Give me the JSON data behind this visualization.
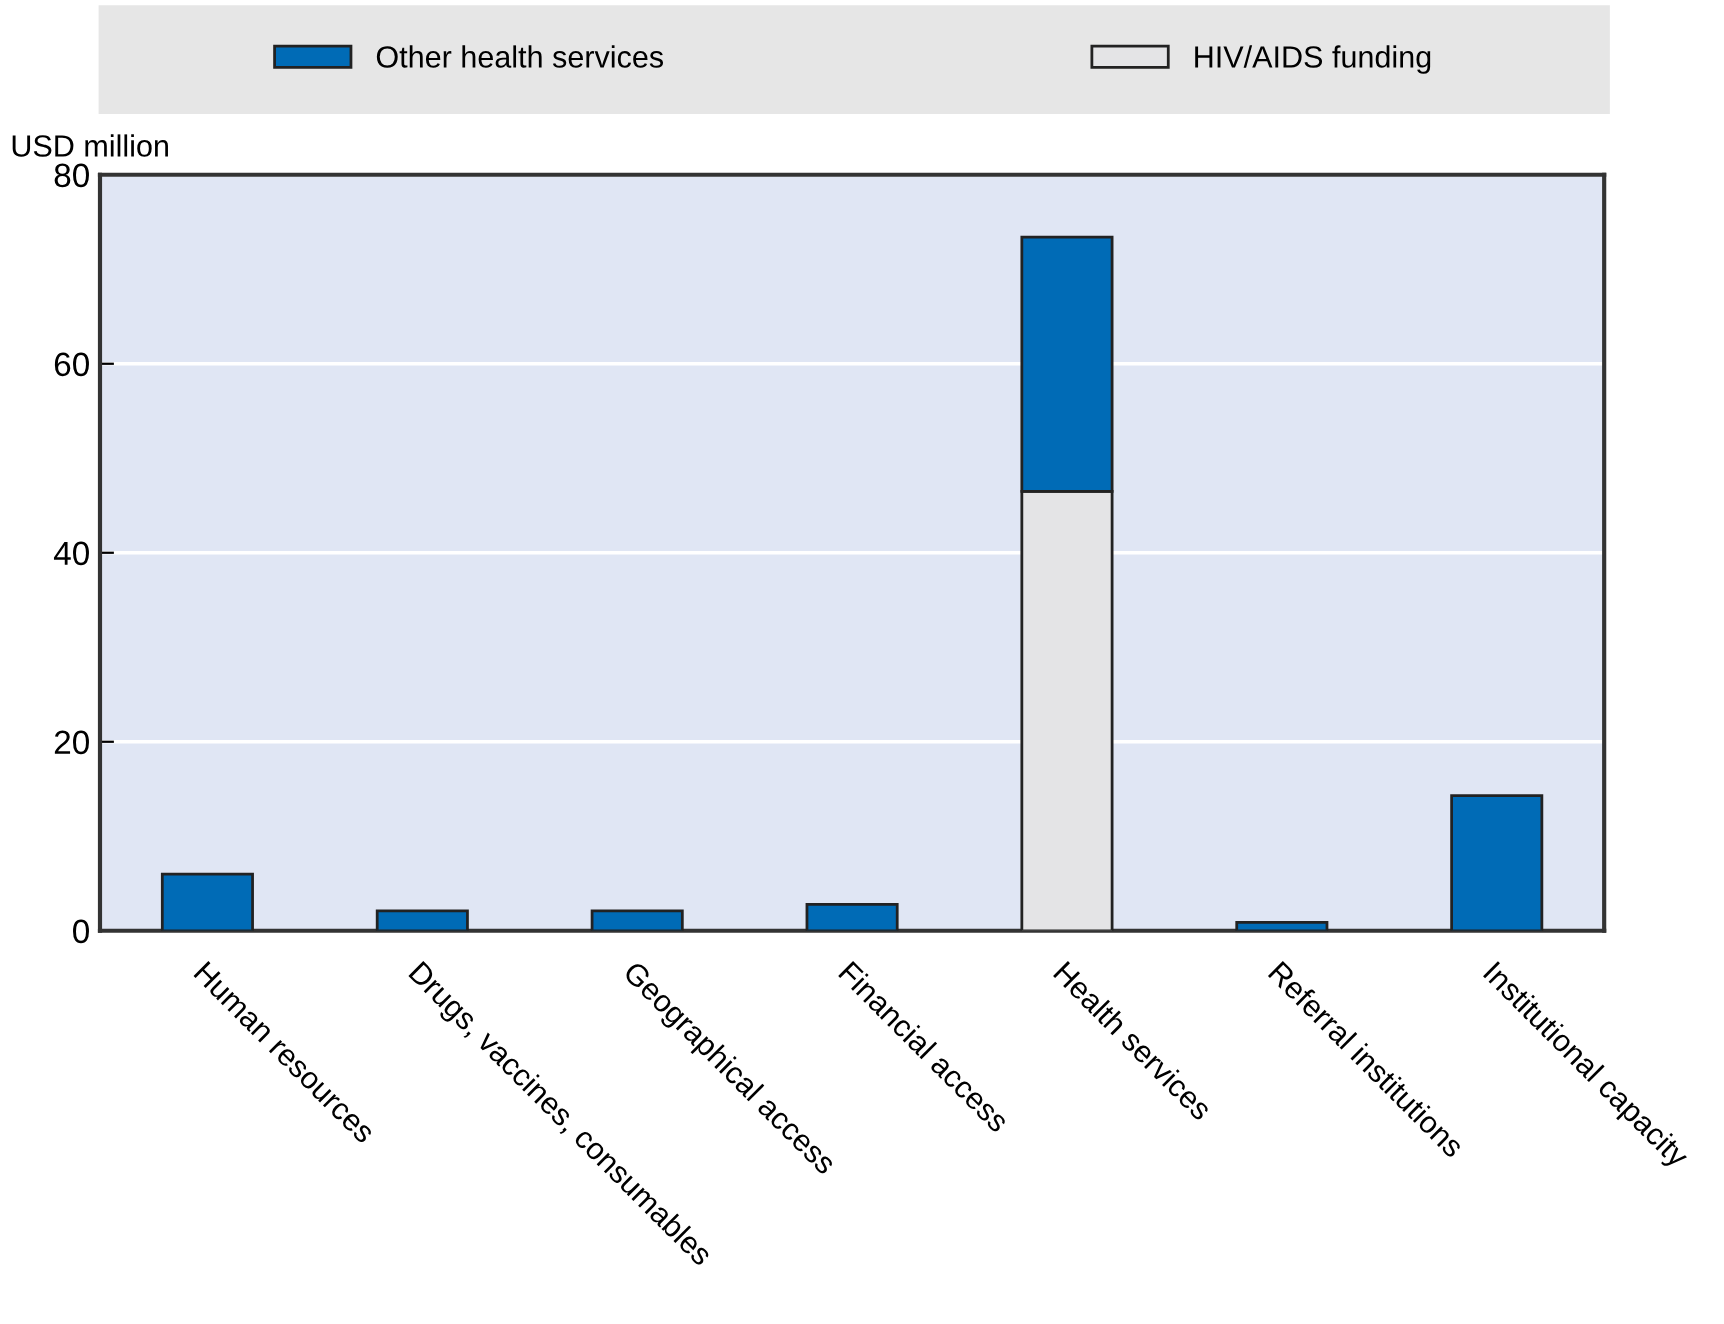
{
  "chart_data": {
    "type": "bar",
    "stacked": true,
    "ylabel": "USD million",
    "categories": [
      "Human resources",
      "Drugs, vaccines, consumables",
      "Geographical access",
      "Financial access",
      "Health services",
      "Referral institutions",
      "Institutional capacity"
    ],
    "series": [
      {
        "name": "HIV/AIDS funding",
        "color": "#e4e4e6",
        "values": [
          0,
          0,
          0,
          0,
          46.5,
          0,
          0
        ]
      },
      {
        "name": "Other health services",
        "color": "#006bb6",
        "values": [
          6.0,
          2.1,
          2.1,
          2.8,
          26.9,
          0.9,
          14.3
        ]
      }
    ],
    "ylim": [
      0,
      80
    ],
    "yticks": [
      0,
      20,
      40,
      60,
      80
    ],
    "grid": "y",
    "legend": "top"
  }
}
